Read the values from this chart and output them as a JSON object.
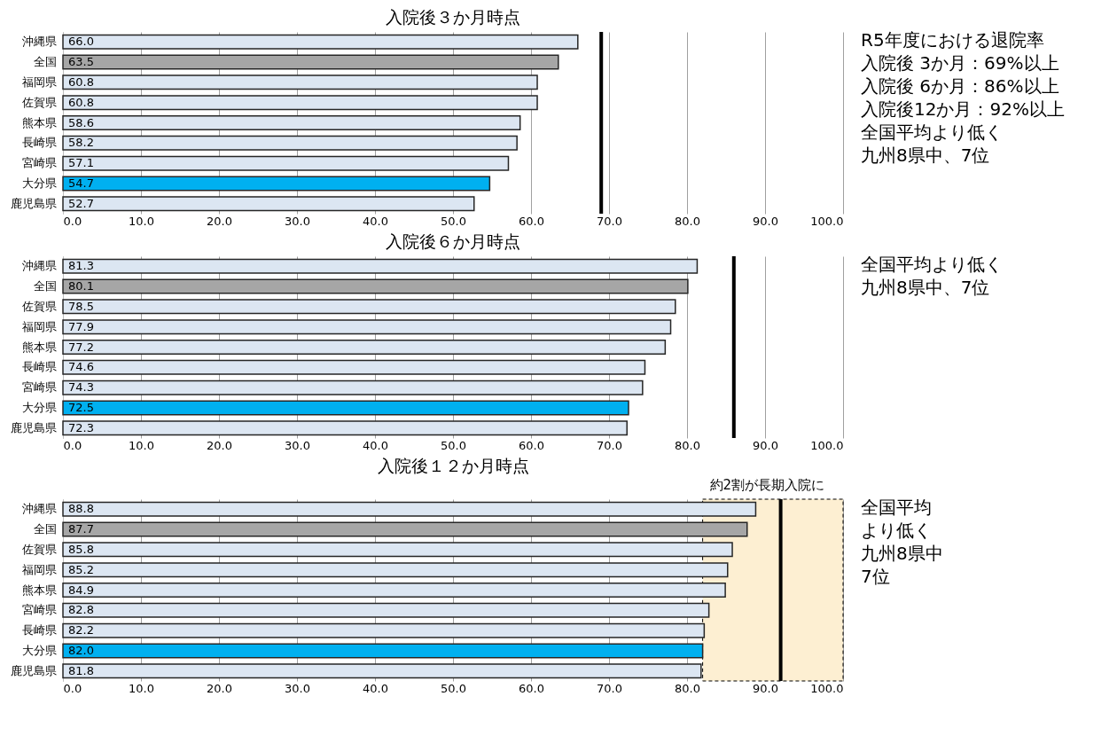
{
  "chart_data": [
    {
      "type": "bar",
      "orientation": "horizontal",
      "title": "入院後３か月時点",
      "categories": [
        "沖縄県",
        "全国",
        "福岡県",
        "佐賀県",
        "熊本県",
        "長崎県",
        "宮崎県",
        "大分県",
        "鹿児島県"
      ],
      "values": [
        66.0,
        63.5,
        60.8,
        60.8,
        58.6,
        58.2,
        57.1,
        54.7,
        52.7
      ],
      "value_labels": [
        "66.0",
        "63.5",
        "60.8",
        "60.8",
        "58.6",
        "58.2",
        "57.1",
        "54.7",
        "52.7"
      ],
      "colors": [
        "#dce6f2",
        "#a6a6a6",
        "#dce6f2",
        "#dce6f2",
        "#dce6f2",
        "#dce6f2",
        "#dce6f2",
        "#00b0f0",
        "#dce6f2"
      ],
      "xlim": [
        0,
        100
      ],
      "xticks": [
        {
          "value": 0,
          "label": "0.0"
        },
        {
          "value": 10,
          "label": "10.0"
        },
        {
          "value": 20,
          "label": "20.0"
        },
        {
          "value": 30,
          "label": "30.0"
        },
        {
          "value": 40,
          "label": "40.0"
        },
        {
          "value": 50,
          "label": "50.0"
        },
        {
          "value": 60,
          "label": "60.0"
        },
        {
          "value": 70,
          "label": "70.0"
        },
        {
          "value": 80,
          "label": "80.0"
        },
        {
          "value": 90,
          "label": "90.0"
        },
        {
          "value": 100,
          "label": "100.0"
        }
      ],
      "grid": "x",
      "ref_lines": [
        {
          "axis": "x",
          "value": 69,
          "color": "#000000"
        }
      ],
      "annotations": [
        "R5年度における退院率",
        "入院後 3か月：69%以上",
        "入院後 6か月：86%以上",
        "入院後12か月：92%以上",
        "全国平均より低く",
        "九州8県中、7位"
      ]
    },
    {
      "type": "bar",
      "orientation": "horizontal",
      "title": "入院後６か月時点",
      "categories": [
        "沖縄県",
        "全国",
        "佐賀県",
        "福岡県",
        "熊本県",
        "長崎県",
        "宮崎県",
        "大分県",
        "鹿児島県"
      ],
      "values": [
        81.3,
        80.1,
        78.5,
        77.9,
        77.2,
        74.6,
        74.3,
        72.5,
        72.3
      ],
      "value_labels": [
        "81.3",
        "80.1",
        "78.5",
        "77.9",
        "77.2",
        "74.6",
        "74.3",
        "72.5",
        "72.3"
      ],
      "colors": [
        "#dce6f2",
        "#a6a6a6",
        "#dce6f2",
        "#dce6f2",
        "#dce6f2",
        "#dce6f2",
        "#dce6f2",
        "#00b0f0",
        "#dce6f2"
      ],
      "xlim": [
        0,
        100
      ],
      "xticks": [
        {
          "value": 0,
          "label": "0.0"
        },
        {
          "value": 10,
          "label": "10.0"
        },
        {
          "value": 20,
          "label": "20.0"
        },
        {
          "value": 30,
          "label": "30.0"
        },
        {
          "value": 40,
          "label": "40.0"
        },
        {
          "value": 50,
          "label": "50.0"
        },
        {
          "value": 60,
          "label": "60.0"
        },
        {
          "value": 70,
          "label": "70.0"
        },
        {
          "value": 80,
          "label": "80.0"
        },
        {
          "value": 90,
          "label": "90.0"
        },
        {
          "value": 100,
          "label": "100.0"
        }
      ],
      "grid": "x",
      "ref_lines": [
        {
          "axis": "x",
          "value": 86,
          "color": "#000000"
        }
      ],
      "annotations": [
        "全国平均より低く",
        "九州8県中、7位"
      ]
    },
    {
      "type": "bar",
      "orientation": "horizontal",
      "title": "入院後１２か月時点",
      "categories": [
        "沖縄県",
        "全国",
        "佐賀県",
        "福岡県",
        "熊本県",
        "宮崎県",
        "長崎県",
        "大分県",
        "鹿児島県"
      ],
      "values": [
        88.8,
        87.7,
        85.8,
        85.2,
        84.9,
        82.8,
        82.2,
        82.0,
        81.8
      ],
      "value_labels": [
        "88.8",
        "87.7",
        "85.8",
        "85.2",
        "84.9",
        "82.8",
        "82.2",
        "82.0",
        "81.8"
      ],
      "colors": [
        "#dce6f2",
        "#a6a6a6",
        "#dce6f2",
        "#dce6f2",
        "#dce6f2",
        "#dce6f2",
        "#dce6f2",
        "#00b0f0",
        "#dce6f2"
      ],
      "xlim": [
        0,
        100
      ],
      "xticks": [
        {
          "value": 0,
          "label": "0.0"
        },
        {
          "value": 10,
          "label": "10.0"
        },
        {
          "value": 20,
          "label": "20.0"
        },
        {
          "value": 30,
          "label": "30.0"
        },
        {
          "value": 40,
          "label": "40.0"
        },
        {
          "value": 50,
          "label": "50.0"
        },
        {
          "value": 60,
          "label": "60.0"
        },
        {
          "value": 70,
          "label": "70.0"
        },
        {
          "value": 80,
          "label": "80.0"
        },
        {
          "value": 90,
          "label": "90.0"
        },
        {
          "value": 100,
          "label": "100.0"
        }
      ],
      "grid": "x",
      "ref_lines": [
        {
          "axis": "x",
          "value": 92,
          "color": "#000000"
        }
      ],
      "bands": [
        {
          "axis": "x",
          "from": 82,
          "to": 100,
          "label": "約2割が長期入院に",
          "color": "#fdefd2"
        }
      ],
      "annotations": [
        "全国平均",
        "より低く",
        "九州8県中",
        "7位"
      ]
    }
  ]
}
